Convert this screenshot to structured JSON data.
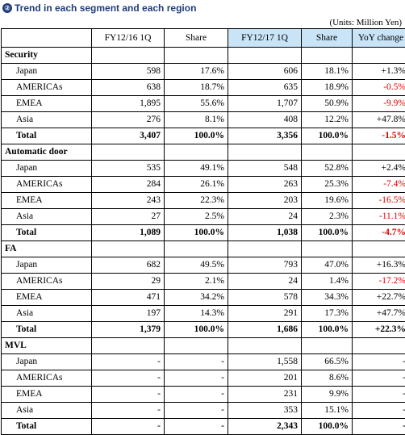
{
  "title": "Trend in each segment and each region",
  "badge": "②",
  "units": "(Units: Million Yen)",
  "headers": [
    "FY12/16 1Q",
    "Share",
    "FY12/17 1Q",
    "Share",
    "YoY change"
  ],
  "segments": [
    {
      "name": "Security",
      "rows": [
        {
          "label": "Japan",
          "v1": "598",
          "s1": "17.6%",
          "v2": "606",
          "s2": "18.1%",
          "yoy": "+1.3%"
        },
        {
          "label": "AMERICAs",
          "v1": "638",
          "s1": "18.7%",
          "v2": "635",
          "s2": "18.9%",
          "yoy": "-0.5%"
        },
        {
          "label": "EMEA",
          "v1": "1,895",
          "s1": "55.6%",
          "v2": "1,707",
          "s2": "50.9%",
          "yoy": "-9.9%"
        },
        {
          "label": "Asia",
          "v1": "276",
          "s1": "8.1%",
          "v2": "408",
          "s2": "12.2%",
          "yoy": "+47.8%"
        }
      ],
      "total": {
        "label": "Total",
        "v1": "3,407",
        "s1": "100.0%",
        "v2": "3,356",
        "s2": "100.0%",
        "yoy": "-1.5%"
      }
    },
    {
      "name": "Automatic door",
      "rows": [
        {
          "label": "Japan",
          "v1": "535",
          "s1": "49.1%",
          "v2": "548",
          "s2": "52.8%",
          "yoy": "+2.4%"
        },
        {
          "label": "AMERICAs",
          "v1": "284",
          "s1": "26.1%",
          "v2": "263",
          "s2": "25.3%",
          "yoy": "-7.4%"
        },
        {
          "label": "EMEA",
          "v1": "243",
          "s1": "22.3%",
          "v2": "203",
          "s2": "19.6%",
          "yoy": "-16.5%"
        },
        {
          "label": "Asia",
          "v1": "27",
          "s1": "2.5%",
          "v2": "24",
          "s2": "2.3%",
          "yoy": "-11.1%"
        }
      ],
      "total": {
        "label": "Total",
        "v1": "1,089",
        "s1": "100.0%",
        "v2": "1,038",
        "s2": "100.0%",
        "yoy": "-4.7%"
      }
    },
    {
      "name": "FA",
      "rows": [
        {
          "label": "Japan",
          "v1": "682",
          "s1": "49.5%",
          "v2": "793",
          "s2": "47.0%",
          "yoy": "+16.3%"
        },
        {
          "label": "AMERICAs",
          "v1": "29",
          "s1": "2.1%",
          "v2": "24",
          "s2": "1.4%",
          "yoy": "-17.2%"
        },
        {
          "label": "EMEA",
          "v1": "471",
          "s1": "34.2%",
          "v2": "578",
          "s2": "34.3%",
          "yoy": "+22.7%"
        },
        {
          "label": "Asia",
          "v1": "197",
          "s1": "14.3%",
          "v2": "291",
          "s2": "17.3%",
          "yoy": "+47.7%"
        }
      ],
      "total": {
        "label": "Total",
        "v1": "1,379",
        "s1": "100.0%",
        "v2": "1,686",
        "s2": "100.0%",
        "yoy": "+22.3%"
      }
    },
    {
      "name": "MVL",
      "rows": [
        {
          "label": "Japan",
          "v1": "-",
          "s1": "-",
          "v2": "1,558",
          "s2": "66.5%",
          "yoy": "-"
        },
        {
          "label": "AMERICAs",
          "v1": "-",
          "s1": "-",
          "v2": "201",
          "s2": "8.6%",
          "yoy": "-"
        },
        {
          "label": "EMEA",
          "v1": "-",
          "s1": "-",
          "v2": "231",
          "s2": "9.9%",
          "yoy": "-"
        },
        {
          "label": "Asia",
          "v1": "-",
          "s1": "-",
          "v2": "353",
          "s2": "15.1%",
          "yoy": "-"
        }
      ],
      "total": {
        "label": "Total",
        "v1": "-",
        "s1": "-",
        "v2": "2,343",
        "s2": "100.0%",
        "yoy": "-"
      }
    }
  ],
  "colors": {
    "title": "#1f3d7a",
    "header_highlight": "#c9e4f7",
    "shade": "#e6f0f8",
    "negative": "#e00000"
  }
}
